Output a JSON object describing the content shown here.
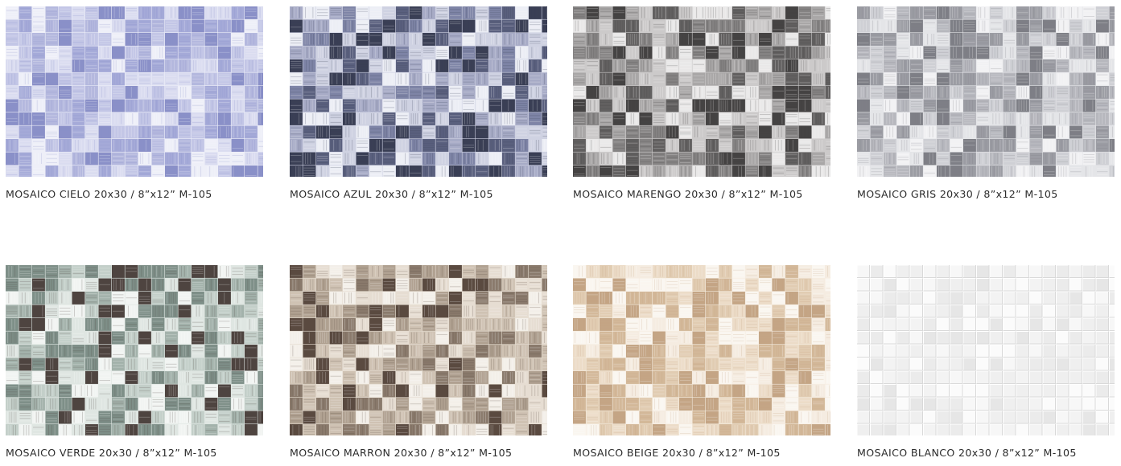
{
  "tiles": [
    {
      "name": "MOSAICO CIELO 20x30 / 8”x12”  M-105",
      "palette": [
        "#8a90c8",
        "#a5aad8",
        "#c3c6e6",
        "#dadcf0",
        "#eeeff8",
        "#b4b8de"
      ]
    },
    {
      "name": "MOSAICO AZUL 20x30 / 8”x12”  M-105",
      "palette": [
        "#3a3f55",
        "#5a607e",
        "#7e84a6",
        "#a7abc6",
        "#cfd2e2",
        "#eceef5"
      ]
    },
    {
      "name": "MOSAICO MARENGO 20x30 / 8”x12”  M-105",
      "palette": [
        "#454343",
        "#626060",
        "#858383",
        "#a9a7a7",
        "#cccaca",
        "#e9e8e8"
      ]
    },
    {
      "name": "MOSAICO GRIS 20x30 / 8”x12”  M-105",
      "palette": [
        "#7e7f86",
        "#9b9ca3",
        "#b7b8be",
        "#cfd0d5",
        "#e4e5e8",
        "#f1f1f3"
      ]
    },
    {
      "name": "MOSAICO VERDE 20x30 / 8”x12”  M-105",
      "palette": [
        "#4e4440",
        "#7e8f88",
        "#a3b2ab",
        "#c3cfc9",
        "#dfe6e2",
        "#f1f4f2"
      ]
    },
    {
      "name": "MOSAICO MARRON 20x30 / 8”x12”  M-105",
      "palette": [
        "#5a4a40",
        "#8a7a6c",
        "#b0a191",
        "#cfc2b3",
        "#e6ddd2",
        "#f3efe9"
      ]
    },
    {
      "name": "MOSAICO BEIGE 20x30 / 8”x12”  M-105",
      "palette": [
        "#c4a585",
        "#d3b899",
        "#e1ccb2",
        "#ecdcc8",
        "#f5ece1",
        "#faf6f0"
      ]
    },
    {
      "name": "MOSAICO BLANCO 20x30 / 8”x12”  M-105",
      "palette": [
        "#e6e6e6",
        "#ebebeb",
        "#efefef",
        "#f3f3f3",
        "#f7f7f7",
        "#fbfbfb"
      ]
    }
  ]
}
